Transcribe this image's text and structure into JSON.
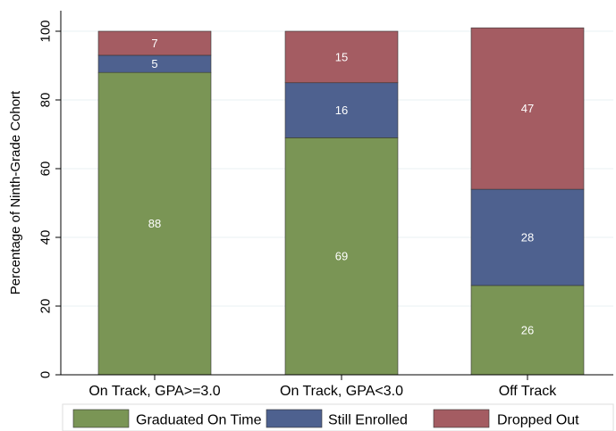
{
  "chart_data": {
    "type": "bar",
    "stacked": true,
    "categories": [
      "On Track, GPA>=3.0",
      "On Track, GPA<3.0",
      "Off Track"
    ],
    "series": [
      {
        "name": "Graduated On Time",
        "values": [
          88,
          69,
          26
        ],
        "color": "#7a9555"
      },
      {
        "name": "Still Enrolled",
        "values": [
          5,
          16,
          28
        ],
        "color": "#4e618f"
      },
      {
        "name": "Dropped Out",
        "values": [
          7,
          15,
          47
        ],
        "color": "#a45c62"
      }
    ],
    "ylabel": "Percentage of Ninth-Grade Cohort",
    "xlabel": "",
    "ylim": [
      0,
      100
    ],
    "yticks": [
      0,
      20,
      40,
      60,
      80,
      100
    ],
    "grid": true,
    "legend_position": "bottom"
  }
}
